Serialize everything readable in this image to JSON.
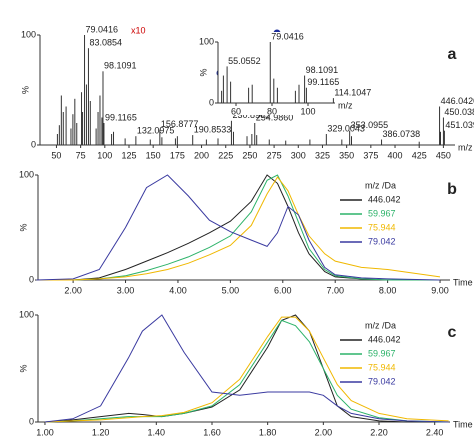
{
  "chart_data": [
    {
      "type": "stick",
      "panel": "a",
      "xlabel": "m/z",
      "ylabel": "%",
      "annotation": "x10",
      "color": "#333333",
      "xlim": [
        33,
        462
      ],
      "ylim": [
        0,
        100
      ],
      "xticks": [
        50,
        75,
        100,
        125,
        150,
        175,
        200,
        225,
        250,
        275,
        300,
        325,
        350,
        375,
        400,
        425,
        450
      ],
      "yticks": [
        0,
        100
      ],
      "x": [
        51,
        53,
        55.0552,
        57.07,
        59.97,
        65,
        67,
        69,
        71,
        75.94,
        77,
        79.0416,
        81,
        83.0854,
        85,
        91,
        93,
        95,
        97,
        98.1091,
        99.1165,
        107,
        109,
        121,
        132.0975,
        147,
        156.8777,
        159,
        173,
        175,
        190.8533,
        205,
        217,
        230.8965,
        233,
        247,
        252,
        254.986,
        257,
        270,
        287,
        312,
        329.0043,
        345,
        353.0955,
        355,
        386.0738,
        425,
        446.042,
        447,
        450.0381,
        451.0394
      ],
      "values": [
        10,
        18,
        45,
        30,
        35,
        15,
        28,
        42,
        20,
        48,
        30,
        100,
        55,
        88,
        40,
        15,
        30,
        45,
        25,
        67,
        20,
        10,
        12,
        6,
        8,
        5,
        14,
        7,
        6,
        8,
        9,
        5,
        6,
        22,
        12,
        8,
        10,
        20,
        9,
        5,
        4,
        5,
        10,
        5,
        13,
        8,
        5,
        3,
        35,
        12,
        25,
        13
      ],
      "point_labels": [
        null,
        null,
        null,
        null,
        null,
        null,
        null,
        null,
        null,
        null,
        null,
        "79.0416",
        null,
        "83.0854",
        null,
        null,
        null,
        null,
        null,
        "98.1091",
        "99.1165",
        null,
        null,
        null,
        "132.0975",
        null,
        "156.8777",
        null,
        null,
        null,
        "190.8533",
        null,
        null,
        "230.8965",
        null,
        null,
        null,
        "254.9860",
        null,
        null,
        null,
        null,
        "329.0043",
        null,
        "353.0955",
        null,
        "386.0738",
        null,
        "446.0420",
        null,
        "450.0381",
        "451.0394"
      ],
      "inset": {
        "xlabel": "m/z",
        "ylabel": "%",
        "xlim": [
          50,
          115
        ],
        "ylim": [
          0,
          100
        ],
        "xticks": [
          60,
          80,
          100
        ],
        "yticks": [
          0,
          100
        ],
        "x": [
          52,
          53,
          55.0552,
          57,
          67,
          69,
          79.0416,
          81,
          83,
          93,
          95,
          98.1091,
          99.1165,
          114.1047
        ],
        "values": [
          20,
          45,
          60,
          35,
          25,
          30,
          100,
          40,
          25,
          20,
          30,
          45,
          25,
          8
        ],
        "point_labels": [
          null,
          null,
          "55.0552",
          null,
          null,
          null,
          "79.0416",
          null,
          null,
          null,
          null,
          "98.1091",
          "99.1165",
          "114.1047"
        ]
      }
    },
    {
      "type": "line",
      "panel": "b",
      "xlabel": "Time",
      "ylabel": "%",
      "legend_title": "m/z /Da",
      "xlim": [
        1.33,
        9.19
      ],
      "ylim": [
        0,
        100
      ],
      "xticks": [
        {
          "value": 2,
          "label": "2.00"
        },
        {
          "value": 3,
          "label": "3.00"
        },
        {
          "value": 4,
          "label": "4.00"
        },
        {
          "value": 5,
          "label": "5.00"
        },
        {
          "value": 6,
          "label": "6.00"
        },
        {
          "value": 7,
          "label": "7.00"
        },
        {
          "value": 8,
          "label": "8.00"
        },
        {
          "value": 9,
          "label": "9.00"
        }
      ],
      "yticks": [
        0,
        100
      ],
      "x": [
        1.3,
        2,
        2.5,
        3,
        3.4,
        3.8,
        4.2,
        4.6,
        5,
        5.4,
        5.7,
        5.9,
        6.1,
        6.3,
        6.5,
        6.8,
        7.0,
        7.5,
        8,
        9
      ],
      "series": [
        {
          "name": "446.042",
          "color": "#222222",
          "values": [
            0,
            0,
            2,
            10,
            18,
            26,
            35,
            45,
            56,
            75,
            100,
            92,
            70,
            45,
            25,
            8,
            3,
            1,
            0,
            0
          ]
        },
        {
          "name": "59.967",
          "color": "#2db36a",
          "values": [
            0,
            0,
            1,
            4,
            9,
            15,
            22,
            31,
            42,
            65,
            95,
            100,
            80,
            55,
            30,
            10,
            4,
            1,
            0,
            0
          ]
        },
        {
          "name": "75.944",
          "color": "#f0b800",
          "values": [
            0,
            0,
            1,
            3,
            6,
            10,
            16,
            24,
            33,
            52,
            82,
            98,
            85,
            62,
            42,
            25,
            18,
            12,
            10,
            3
          ]
        },
        {
          "name": "79.042",
          "color": "#3a3aa0",
          "values": [
            0,
            1,
            10,
            50,
            88,
            100,
            80,
            57,
            46,
            38,
            32,
            45,
            70,
            62,
            38,
            12,
            5,
            2,
            1,
            0
          ]
        }
      ]
    },
    {
      "type": "line",
      "panel": "c",
      "xlabel": "Time",
      "ylabel": "%",
      "legend_title": "m/z /Da",
      "xlim": [
        0.975,
        2.455
      ],
      "ylim": [
        0,
        100
      ],
      "xticks": [
        {
          "value": 1,
          "label": "1.00"
        },
        {
          "value": 1.2,
          "label": "1.20"
        },
        {
          "value": 1.4,
          "label": "1.40"
        },
        {
          "value": 1.6,
          "label": "1.60"
        },
        {
          "value": 1.8,
          "label": "1.80"
        },
        {
          "value": 2,
          "label": "2.00"
        },
        {
          "value": 2.2,
          "label": "2.20"
        },
        {
          "value": 2.4,
          "label": "2.40"
        }
      ],
      "yticks": [
        0,
        100
      ],
      "x": [
        1.0,
        1.1,
        1.2,
        1.3,
        1.35,
        1.42,
        1.5,
        1.6,
        1.7,
        1.8,
        1.85,
        1.9,
        1.95,
        2.0,
        2.05,
        2.1,
        2.2,
        2.3,
        2.45
      ],
      "series": [
        {
          "name": "446.042",
          "color": "#222222",
          "values": [
            0,
            2,
            5,
            8,
            7,
            5,
            8,
            14,
            30,
            70,
            95,
            100,
            85,
            50,
            15,
            5,
            1,
            0,
            0
          ]
        },
        {
          "name": "59.967",
          "color": "#2db36a",
          "values": [
            0,
            1,
            3,
            5,
            5,
            5,
            8,
            15,
            35,
            75,
            95,
            90,
            75,
            50,
            25,
            12,
            4,
            1,
            0
          ]
        },
        {
          "name": "75.944",
          "color": "#f0b800",
          "values": [
            0,
            1,
            2,
            4,
            5,
            6,
            9,
            18,
            40,
            80,
            98,
            98,
            85,
            60,
            35,
            20,
            8,
            3,
            1
          ]
        },
        {
          "name": "79.042",
          "color": "#3a3aa0",
          "values": [
            0,
            3,
            15,
            60,
            85,
            100,
            65,
            28,
            25,
            28,
            28,
            28,
            28,
            25,
            15,
            8,
            3,
            1,
            0
          ]
        }
      ]
    }
  ]
}
